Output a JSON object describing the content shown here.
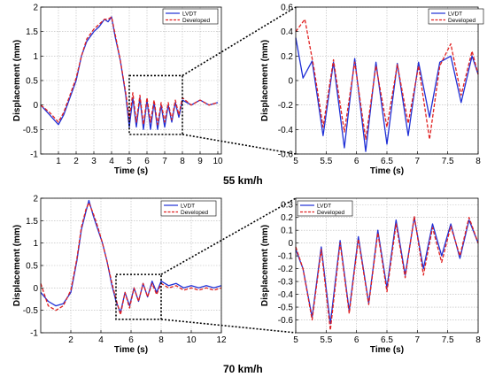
{
  "colors": {
    "lvdt": "#1f2fd6",
    "developed": "#e02020",
    "grid": "#b8b8b8",
    "box": "#000000"
  },
  "speed_labels": [
    "55 km/h",
    "70 km/h"
  ],
  "chart_data": [
    {
      "type": "line",
      "id": "a",
      "xlabel": "Time (s)",
      "ylabel": "Displacement (mm)",
      "xlim": [
        0,
        10.2
      ],
      "ylim": [
        -1,
        2
      ],
      "xticks": [
        1,
        2,
        3,
        4,
        5,
        6,
        7,
        8,
        9,
        10
      ],
      "yticks": [
        -1,
        -0.5,
        0,
        0.5,
        1,
        1.5,
        2
      ],
      "ytick_labels": [
        "-1",
        "-0.5",
        "0",
        "0.5",
        "1",
        "1.5",
        "2"
      ],
      "grid": true,
      "legend_position": "top-right",
      "zoom_box": {
        "x": [
          5,
          8
        ],
        "y": [
          -0.6,
          0.6
        ]
      },
      "series": [
        {
          "name": "LVDT",
          "style": "solid",
          "x": [
            0,
            0.5,
            1,
            1.3,
            1.6,
            2,
            2.3,
            2.6,
            3,
            3.3,
            3.6,
            3.8,
            4,
            4.2,
            4.5,
            4.8,
            5,
            5.2,
            5.4,
            5.6,
            5.8,
            6,
            6.2,
            6.4,
            6.6,
            6.8,
            7,
            7.2,
            7.4,
            7.6,
            7.8,
            8,
            8.5,
            9,
            9.5,
            10
          ],
          "y": [
            0,
            -0.2,
            -0.4,
            -0.2,
            0.1,
            0.5,
            1.0,
            1.3,
            1.5,
            1.6,
            1.75,
            1.7,
            1.8,
            1.4,
            0.9,
            0.2,
            -0.45,
            0.15,
            -0.45,
            0.15,
            -0.5,
            0.1,
            -0.5,
            0.05,
            -0.5,
            0.0,
            -0.45,
            0.0,
            -0.35,
            0.05,
            -0.25,
            0.1,
            0.0,
            0.1,
            0.0,
            0.05
          ]
        },
        {
          "name": "Developed",
          "style": "dashed",
          "x": [
            0,
            0.5,
            1,
            1.3,
            1.6,
            2,
            2.3,
            2.6,
            3,
            3.3,
            3.6,
            3.8,
            4,
            4.2,
            4.5,
            4.8,
            5,
            5.2,
            5.4,
            5.6,
            5.8,
            6,
            6.2,
            6.4,
            6.6,
            6.8,
            7,
            7.2,
            7.4,
            7.6,
            7.8,
            8,
            8.5,
            9,
            9.5,
            10
          ],
          "y": [
            0,
            -0.15,
            -0.35,
            -0.15,
            0.15,
            0.55,
            1.0,
            1.35,
            1.55,
            1.65,
            1.75,
            1.75,
            1.8,
            1.45,
            0.9,
            0.25,
            -0.3,
            0.25,
            -0.35,
            0.2,
            -0.4,
            0.15,
            -0.35,
            0.1,
            -0.4,
            0.05,
            -0.35,
            0.05,
            -0.3,
            0.1,
            -0.2,
            0.15,
            0.0,
            0.1,
            0.0,
            0.05
          ]
        }
      ]
    },
    {
      "type": "line",
      "id": "b",
      "xlabel": "Time (s)",
      "ylabel": "Displacement (mm)",
      "xlim": [
        5,
        8
      ],
      "ylim": [
        -0.6,
        0.6
      ],
      "xticks": [
        5,
        5.5,
        6,
        6.5,
        7,
        7.5,
        8
      ],
      "xtick_labels": [
        "5",
        "5.5",
        "6",
        "6.5",
        "7",
        "7.5",
        "8"
      ],
      "yticks": [
        -0.6,
        -0.4,
        -0.2,
        0,
        0.2,
        0.4,
        0.6
      ],
      "ytick_labels": [
        "-0.6",
        "-0.4",
        "-0.2",
        "0",
        "0.2",
        "0.4",
        "0.6"
      ],
      "grid": true,
      "legend_position": "top-left",
      "series": [
        {
          "name": "LVDT",
          "style": "solid",
          "x": [
            5,
            5.12,
            5.27,
            5.45,
            5.62,
            5.8,
            5.97,
            6.15,
            6.32,
            6.5,
            6.67,
            6.85,
            7.02,
            7.2,
            7.37,
            7.55,
            7.72,
            7.9,
            8
          ],
          "y": [
            0.35,
            0.02,
            0.16,
            -0.45,
            0.15,
            -0.55,
            0.18,
            -0.58,
            0.15,
            -0.52,
            0.14,
            -0.45,
            0.15,
            -0.3,
            0.15,
            0.2,
            -0.18,
            0.2,
            0.05
          ]
        },
        {
          "name": "Developed",
          "style": "dashed",
          "x": [
            5,
            5.15,
            5.3,
            5.45,
            5.62,
            5.8,
            5.97,
            6.15,
            6.32,
            6.5,
            6.67,
            6.85,
            7.02,
            7.2,
            7.37,
            7.55,
            7.72,
            7.9,
            8
          ],
          "y": [
            0.4,
            0.5,
            0.1,
            -0.38,
            0.17,
            -0.42,
            0.15,
            -0.48,
            0.12,
            -0.38,
            0.13,
            -0.35,
            0.12,
            -0.48,
            0.12,
            0.3,
            -0.12,
            0.24,
            0.05
          ]
        }
      ]
    },
    {
      "type": "line",
      "id": "c",
      "xlabel": "Time (s)",
      "ylabel": "Displacement (mm)",
      "xlim": [
        0,
        12
      ],
      "ylim": [
        -1,
        2
      ],
      "xticks": [
        2,
        4,
        6,
        8,
        10,
        12
      ],
      "yticks": [
        -1,
        -0.5,
        0,
        0.5,
        1,
        1.5,
        2
      ],
      "ytick_labels": [
        "-1",
        "-0.5",
        "0",
        "0.5",
        "1",
        "1.5",
        "2"
      ],
      "grid": true,
      "legend_position": "top-right",
      "zoom_box": {
        "x": [
          5,
          8
        ],
        "y": [
          -0.7,
          0.3
        ]
      },
      "series": [
        {
          "name": "LVDT",
          "style": "solid",
          "x": [
            0,
            0.5,
            1,
            1.5,
            2,
            2.4,
            2.7,
            3,
            3.2,
            3.5,
            3.8,
            4.1,
            4.4,
            4.7,
            5,
            5.3,
            5.6,
            5.9,
            6.2,
            6.5,
            6.8,
            7.1,
            7.4,
            7.7,
            8,
            8.5,
            9,
            9.5,
            10,
            10.5,
            11,
            11.5,
            12
          ],
          "y": [
            -0.1,
            -0.3,
            -0.4,
            -0.35,
            -0.1,
            0.6,
            1.3,
            1.7,
            1.95,
            1.6,
            1.3,
            1.0,
            0.6,
            0.1,
            -0.3,
            -0.55,
            -0.1,
            -0.4,
            0.0,
            -0.3,
            0.1,
            -0.2,
            0.15,
            -0.1,
            0.15,
            0.05,
            0.1,
            0.0,
            0.05,
            0.0,
            0.05,
            0.0,
            0.05
          ]
        },
        {
          "name": "Developed",
          "style": "dashed",
          "x": [
            0,
            0.5,
            1,
            1.5,
            2,
            2.4,
            2.7,
            3,
            3.2,
            3.5,
            3.8,
            4.1,
            4.4,
            4.7,
            5,
            5.3,
            5.6,
            5.9,
            6.2,
            6.5,
            6.8,
            7.1,
            7.4,
            7.7,
            8,
            8.5,
            9,
            9.5,
            10,
            10.5,
            11,
            11.5,
            12
          ],
          "y": [
            0.1,
            -0.4,
            -0.5,
            -0.4,
            -0.05,
            0.65,
            1.35,
            1.75,
            1.9,
            1.65,
            1.35,
            1.0,
            0.6,
            0.15,
            -0.25,
            -0.6,
            -0.1,
            -0.45,
            0.0,
            -0.3,
            0.1,
            -0.2,
            0.1,
            -0.15,
            0.1,
            0.0,
            0.05,
            -0.05,
            0.0,
            -0.05,
            0.0,
            -0.05,
            0.0
          ]
        }
      ]
    },
    {
      "type": "line",
      "id": "d",
      "xlabel": "Time (s)",
      "ylabel": "Displacement (mm)",
      "xlim": [
        5,
        8
      ],
      "ylim": [
        -0.7,
        0.35
      ],
      "xticks": [
        5,
        5.5,
        6,
        6.5,
        7,
        7.5,
        8
      ],
      "xtick_labels": [
        "5",
        "5.5",
        "6",
        "6.5",
        "7",
        "7.5",
        "8"
      ],
      "yticks": [
        -0.6,
        -0.5,
        -0.4,
        -0.3,
        -0.2,
        -0.1,
        0,
        0.1,
        0.2,
        0.3
      ],
      "ytick_labels": [
        "-0.6",
        "-0.5",
        "-0.4",
        "-0.3",
        "-0.2",
        "-0.1",
        "0",
        "0.1",
        "0.2",
        "0.3"
      ],
      "grid": true,
      "legend_position": "top-left",
      "series": [
        {
          "name": "LVDT",
          "style": "solid",
          "x": [
            5,
            5.12,
            5.27,
            5.42,
            5.57,
            5.73,
            5.88,
            6.03,
            6.2,
            6.35,
            6.5,
            6.65,
            6.8,
            6.95,
            7.1,
            7.25,
            7.4,
            7.55,
            7.7,
            7.85,
            8
          ],
          "y": [
            -0.05,
            -0.2,
            -0.58,
            -0.03,
            -0.63,
            0.02,
            -0.53,
            0.05,
            -0.47,
            0.1,
            -0.35,
            0.18,
            -0.25,
            0.2,
            -0.2,
            0.15,
            -0.1,
            0.15,
            -0.12,
            0.18,
            0.0
          ]
        },
        {
          "name": "Developed",
          "style": "dashed",
          "x": [
            5,
            5.12,
            5.27,
            5.42,
            5.57,
            5.73,
            5.88,
            6.03,
            6.2,
            6.35,
            6.5,
            6.65,
            6.8,
            6.95,
            7.1,
            7.25,
            7.4,
            7.55,
            7.7,
            7.85,
            8
          ],
          "y": [
            -0.03,
            -0.2,
            -0.6,
            -0.05,
            -0.68,
            0.0,
            -0.55,
            0.03,
            -0.48,
            0.08,
            -0.38,
            0.15,
            -0.27,
            0.21,
            -0.25,
            0.12,
            -0.15,
            0.13,
            -0.1,
            0.2,
            0.0
          ]
        }
      ]
    }
  ]
}
